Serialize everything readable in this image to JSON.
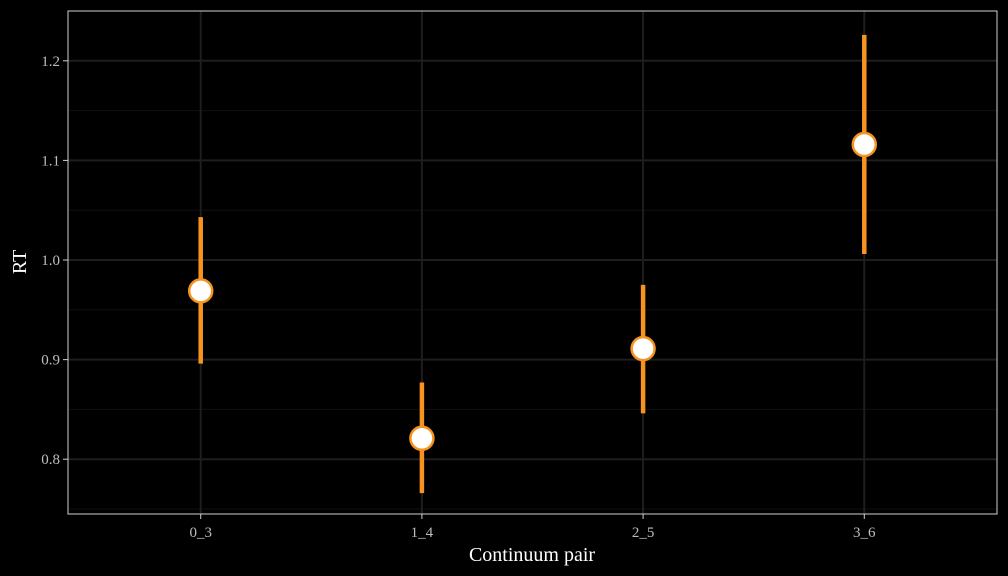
{
  "chart_data": {
    "type": "scatter",
    "title": "",
    "xlabel": "Continuum pair",
    "ylabel": "RT",
    "categories": [
      "0_3",
      "1_4",
      "2_5",
      "3_6"
    ],
    "points": [
      {
        "x": "0_3",
        "y": 0.969,
        "ymin": 0.896,
        "ymax": 1.043
      },
      {
        "x": "1_4",
        "y": 0.821,
        "ymin": 0.766,
        "ymax": 0.877
      },
      {
        "x": "2_5",
        "y": 0.911,
        "ymin": 0.846,
        "ymax": 0.975
      },
      {
        "x": "3_6",
        "y": 1.116,
        "ymin": 1.006,
        "ymax": 1.226
      }
    ],
    "yticks": [
      0.8,
      0.9,
      1.0,
      1.1,
      1.2
    ],
    "ytick_labels": [
      "0.8",
      "0.9",
      "1.0",
      "1.1",
      "1.2"
    ],
    "ylim": [
      0.745,
      1.25
    ],
    "grid": true,
    "legend": "none",
    "colors": {
      "background": "#000000",
      "panel_border": "#cfcfcf",
      "grid_major": "#1e1e1e",
      "grid_minor": "#111111",
      "errorbar": "#f7931e",
      "point_fill": "#ffffff",
      "point_stroke": "#f7931e"
    }
  }
}
